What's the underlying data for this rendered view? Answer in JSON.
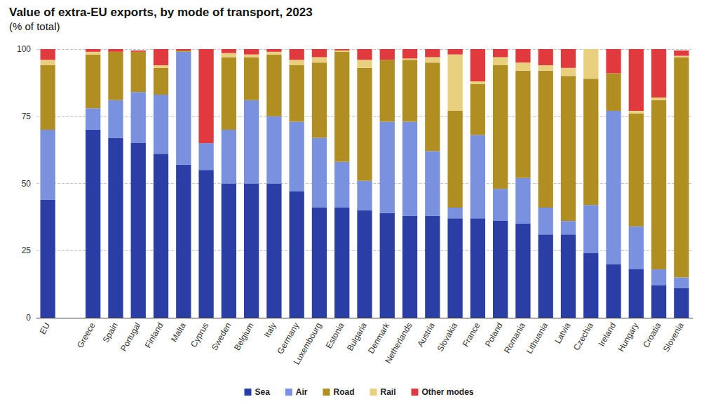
{
  "chart_data": {
    "type": "bar",
    "title": "Value of extra-EU exports, by mode of transport, 2023",
    "subtitle": "(% of total)",
    "categories": [
      "EU",
      null,
      "Greece",
      "Spain",
      "Portugal",
      "Finland",
      "Malta",
      "Cyprus",
      "Sweden",
      "Belgium",
      "Italy",
      "Germany",
      "Luxembourg",
      "Estonia",
      "Bulgaria",
      "Denmark",
      "Netherlands",
      "Austria",
      "Slovakia",
      "France",
      "Poland",
      "Romania",
      "Lithuania",
      "Latvia",
      "Czechia",
      "Ireland",
      "Hungary",
      "Croatia",
      "Slovenia"
    ],
    "series": [
      {
        "name": "Sea",
        "color": "#2b3ea6",
        "values": [
          44,
          null,
          70,
          67,
          65,
          61,
          57,
          55,
          50,
          50,
          50,
          47,
          41,
          41,
          40,
          39,
          38,
          38,
          37,
          37,
          36,
          35,
          31,
          31,
          24,
          20,
          18,
          12,
          11
        ]
      },
      {
        "name": "Air",
        "color": "#7a91e0",
        "values": [
          26,
          null,
          8,
          14,
          19,
          22,
          42,
          10,
          20,
          31,
          25,
          26,
          26,
          17,
          11,
          34,
          35,
          24,
          4,
          31,
          12,
          17,
          10,
          5,
          18,
          57,
          16,
          6,
          4
        ]
      },
      {
        "name": "Road",
        "color": "#b08e22",
        "values": [
          24,
          null,
          20,
          18,
          15,
          10,
          0.5,
          0,
          27,
          16,
          23,
          21,
          28,
          41,
          42,
          23,
          23,
          33,
          36,
          19,
          46,
          40,
          51,
          54,
          47,
          14,
          42,
          63,
          82
        ]
      },
      {
        "name": "Rail",
        "color": "#e8d07e",
        "values": [
          2,
          null,
          1,
          0,
          0,
          1,
          0,
          0,
          1.5,
          1,
          1,
          2,
          2,
          0.5,
          3,
          0,
          0.5,
          2,
          21,
          1,
          3,
          3,
          2,
          3,
          11,
          0,
          1,
          1,
          0.5
        ]
      },
      {
        "name": "Other modes",
        "color": "#e0393e",
        "values": [
          4,
          null,
          1,
          1,
          0.5,
          6,
          0.5,
          35,
          1.5,
          2,
          1,
          4,
          3,
          0.5,
          4,
          4,
          3.5,
          3,
          2,
          12,
          3,
          5,
          6,
          7,
          0,
          9,
          23,
          18,
          2
        ]
      }
    ],
    "ylim": [
      0,
      100
    ],
    "yticks": [
      0,
      25,
      50,
      75,
      100
    ],
    "grid": true,
    "stacked": true,
    "legend": "bottom"
  }
}
